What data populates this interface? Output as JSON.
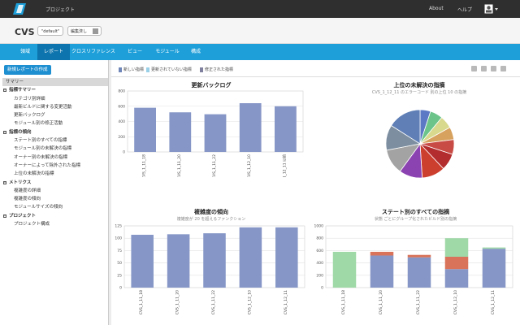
{
  "topbar": {
    "project_link": "プロジェクト",
    "about": "About",
    "help": "ヘルプ"
  },
  "header": {
    "title": "CVS",
    "branch": "\"default\"",
    "edit": "編集済し"
  },
  "nav": {
    "tabs": [
      {
        "label": "領域"
      },
      {
        "label": "レポート"
      },
      {
        "label": "クロスリファレンス"
      },
      {
        "label": "ビュー"
      },
      {
        "label": "モジュール"
      },
      {
        "label": "構成"
      }
    ],
    "active_index": 1
  },
  "sidebar": {
    "new_report": "新規レポートの作成",
    "items": [
      {
        "label": "サマリー",
        "level": "summary",
        "selected": true
      },
      {
        "label": "指標サマリー",
        "level": 0,
        "toggle": "-"
      },
      {
        "label": "カテゴリ別詳細",
        "level": 1
      },
      {
        "label": "最新ビルドに関する変更活動",
        "level": 1
      },
      {
        "label": "更新バックログ",
        "level": 1
      },
      {
        "label": "モジュール別の修正活動",
        "level": 1
      },
      {
        "label": "指標の傾向",
        "level": 0,
        "toggle": "-"
      },
      {
        "label": "ステート別のすべての指標",
        "level": 1
      },
      {
        "label": "モジュール別の未解決の指標",
        "level": 1
      },
      {
        "label": "オーナー別の未解決の指標",
        "level": 1
      },
      {
        "label": "オーナーによって除外された指標",
        "level": 1
      },
      {
        "label": "上位の未解決の指標",
        "level": 1
      },
      {
        "label": "メトリクス",
        "level": 0,
        "toggle": "-"
      },
      {
        "label": "複雑度の詳細",
        "level": 1
      },
      {
        "label": "複雑度の傾向",
        "level": 1
      },
      {
        "label": "モジュールサイズの傾向",
        "level": 1
      },
      {
        "label": "プロジェクト",
        "level": 0,
        "toggle": "-"
      },
      {
        "label": "プロジェクト構成",
        "level": 1
      }
    ]
  },
  "legend": {
    "items": [
      {
        "label": "新しい指標",
        "color": "#6f86b8"
      },
      {
        "label": "更新されていない指標",
        "color": "#9ad0e8"
      },
      {
        "label": "修正された指標",
        "color": "#7f7f9e"
      }
    ]
  },
  "chart_data": [
    {
      "type": "bar",
      "title": "更新バックログ",
      "subtitle": "",
      "categories": [
        "CVS_1_11_18",
        "CVS_1_11_20",
        "CVS_1_11_22",
        "CVS_1_12_10",
        "CVS_1_12_11 以前"
      ],
      "values": [
        580,
        520,
        495,
        640,
        600
      ],
      "ylim": [
        0,
        800
      ],
      "yticks": [
        0,
        200,
        400,
        600,
        800
      ],
      "color": "#8696c6",
      "grid": true
    },
    {
      "type": "pie",
      "title": "上位の未解決の指摘",
      "subtitle": "CVS_1_12_11 のエラーコード 別の上位 10 の指摘",
      "values": [
        5,
        6,
        6,
        6,
        7,
        8,
        11,
        11,
        12,
        12,
        16
      ],
      "colors": [
        "#5b79c4",
        "#6cc48a",
        "#d8d98c",
        "#d7a15e",
        "#c94b45",
        "#b32d2e",
        "#cc3e2e",
        "#8c43b2",
        "#a3a3a3",
        "#7c8ea0",
        "#5f7fb6"
      ]
    },
    {
      "type": "bar",
      "title": "複雑度の傾向",
      "subtitle": "複雑度が 20 を超えるファンクション",
      "categories": [
        "CVS_1_11_18",
        "CVS_1_11_20",
        "CVS_1_11_22",
        "CVS_1_12_10",
        "CVS_1_12_11"
      ],
      "values": [
        107,
        108,
        110,
        122,
        122
      ],
      "ylim": [
        0,
        125
      ],
      "yticks": [
        0,
        25,
        50,
        75,
        100,
        125
      ],
      "color": "#8696c6",
      "grid": true
    },
    {
      "type": "bar",
      "title": "ステート別のすべての指摘",
      "subtitle": "状態 ごとにグループ化されたビルド別の指摘",
      "stacked": true,
      "categories": [
        "CVS_1_11_18",
        "CVS_1_11_20",
        "CVS_1_11_22",
        "CVS_1_12_10",
        "CVS_1_12_11"
      ],
      "series": [
        {
          "values": [
            0,
            520,
            490,
            300,
            630
          ],
          "color": "#8696c6"
        },
        {
          "values": [
            0,
            0,
            0,
            200,
            0
          ],
          "color": "#d9735a"
        },
        {
          "values": [
            0,
            60,
            40,
            0,
            0
          ],
          "color": "#d9735a"
        },
        {
          "values": [
            580,
            0,
            0,
            300,
            20
          ],
          "color": "#9fd9a8"
        }
      ],
      "ylim": [
        0,
        1000
      ],
      "yticks": [
        0,
        200,
        400,
        600,
        800,
        1000
      ],
      "grid": true
    }
  ]
}
